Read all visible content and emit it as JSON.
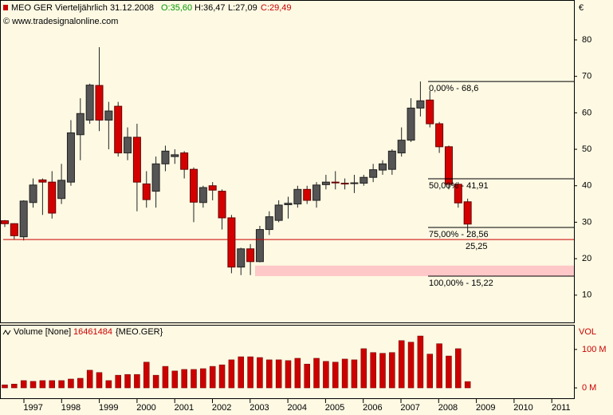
{
  "header": {
    "symbol": "MEO GER Vierteljährlich",
    "date": "31.12.2008",
    "open": "O:35,60",
    "high": "H:36,47",
    "low": "L:27,09",
    "close": "C:29,49",
    "copyright": "© www.tradesignalonline.com",
    "currency": "€"
  },
  "chart_data": [
    {
      "type": "candlestick",
      "up_color": "#555555",
      "down_color": "#d40000",
      "open": [
        30.4,
        29.6,
        26.0,
        35.4,
        41.6,
        41.0,
        36.5,
        41.0,
        54.0,
        58.0,
        67.5,
        58.0,
        61.8,
        49.0,
        53.3,
        40.5,
        38.5,
        46.0,
        48.0,
        49.0,
        44.5,
        35.4,
        40.0,
        38.5,
        31.2,
        17.7,
        22.7,
        19.2,
        28.0,
        30.5,
        34.8,
        35.0,
        39.0,
        36.0,
        40.3,
        41.0,
        40.7,
        40.6,
        40.7,
        42.3,
        44.3,
        44.5,
        49.0,
        52.5,
        61.3,
        63.5,
        57.0,
        50.7,
        40.4,
        35.6
      ],
      "high": [
        30.6,
        29.7,
        36.0,
        42.0,
        42.0,
        44.0,
        46.0,
        58.0,
        64.0,
        68.0,
        78.0,
        63.0,
        63.0,
        56.0,
        57.0,
        44.0,
        48.0,
        51.0,
        50.0,
        49.5,
        45.0,
        40.0,
        41.0,
        39.0,
        32.0,
        23.0,
        24.0,
        29.0,
        33.0,
        36.0,
        37.0,
        40.0,
        40.0,
        41.0,
        43.0,
        44.0,
        42.0,
        43.0,
        43.0,
        46.0,
        47.0,
        50.0,
        56.0,
        64.0,
        68.6,
        66.0,
        57.5,
        51.0,
        41.0,
        36.47
      ],
      "low": [
        28.7,
        25.3,
        25.0,
        34.0,
        32.0,
        31.0,
        35.0,
        40.0,
        47.0,
        57.0,
        55.0,
        50.0,
        48.0,
        47.0,
        33.0,
        34.0,
        34.0,
        44.0,
        46.0,
        42.0,
        30.0,
        34.0,
        36.0,
        28.0,
        16.0,
        15.5,
        15.5,
        19.0,
        26.5,
        30.0,
        31.0,
        34.0,
        35.0,
        34.0,
        39.0,
        39.0,
        39.0,
        38.0,
        40.0,
        41.0,
        43.0,
        43.0,
        48.0,
        52.0,
        59.0,
        56.0,
        49.0,
        39.0,
        34.0,
        27.09
      ],
      "close": [
        29.6,
        26.3,
        35.8,
        40.2,
        41.0,
        32.5,
        41.5,
        54.5,
        59.8,
        67.6,
        58.0,
        60.5,
        49.0,
        53.3,
        41.0,
        36.2,
        46.0,
        49.5,
        48.5,
        44.5,
        35.5,
        39.5,
        38.8,
        31.2,
        17.7,
        22.7,
        19.2,
        28.0,
        31.5,
        34.7,
        35.2,
        39.0,
        36.0,
        40.2,
        41.0,
        40.8,
        40.6,
        40.8,
        42.3,
        44.4,
        46.0,
        49.5,
        52.5,
        61.3,
        63.3,
        57.0,
        50.7,
        40.4,
        35.3,
        29.49
      ],
      "ylim": [
        2.3,
        90.5
      ],
      "yticks": [
        10,
        20,
        30,
        40,
        50,
        60,
        70,
        80
      ],
      "fib_levels": [
        {
          "value": 68.6,
          "label": "0,00% - 68,6"
        },
        {
          "value": 41.91,
          "label": "50,00% - 41,91"
        },
        {
          "value": 28.56,
          "label": "75,00% - 28,56"
        },
        {
          "value": 15.22,
          "label": "100,00% - 15,22"
        }
      ],
      "support_line": {
        "value": 25.25,
        "label": "25,25",
        "color": "#cc0000"
      },
      "zone": {
        "range": [
          15.22,
          18.1
        ],
        "color": "#ffc8c8"
      }
    },
    {
      "type": "bar",
      "title": "Volume [None]",
      "last_value": "16461484",
      "symbol": "{MEO.GER}",
      "axis_title": "VOL",
      "color": "#cc0000",
      "values": [
        8,
        10,
        19,
        17,
        19,
        19,
        19,
        23,
        25,
        46,
        40,
        19,
        33,
        35,
        35,
        67,
        33,
        56,
        44,
        48,
        48,
        50,
        56,
        60,
        73,
        81,
        81,
        79,
        73,
        73,
        71,
        77,
        62,
        77,
        69,
        67,
        75,
        73,
        102,
        92,
        90,
        92,
        123,
        119,
        135,
        88,
        115,
        83,
        102,
        16.46
      ],
      "ylim": [
        -29,
        162
      ],
      "yticks": [
        {
          "value": 0,
          "label": "0 M"
        },
        {
          "value": 100,
          "label": "100 M"
        }
      ],
      "years": [
        "1997",
        "1998",
        "1999",
        "2000",
        "2001",
        "2002",
        "2003",
        "2004",
        "2005",
        "2006",
        "2007",
        "2008",
        "2009",
        "2010",
        "2011"
      ]
    }
  ]
}
